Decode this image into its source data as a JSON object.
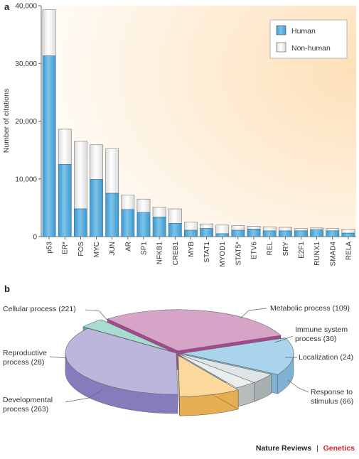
{
  "panel_a_letter": "a",
  "panel_b_letter": "b",
  "footer": {
    "journal": "Nature Reviews",
    "separator": "|",
    "section": "Genetics"
  },
  "colors": {
    "human": "#5aaede",
    "nonhuman": "#ffffff",
    "bg_warm": "#fde3bf"
  },
  "chart_data": [
    {
      "type": "bar",
      "stacked": true,
      "ylabel": "Number of citations",
      "ylim": [
        0,
        40000
      ],
      "yticks": [
        0,
        10000,
        20000,
        30000,
        40000
      ],
      "ytick_labels": [
        "0",
        "10,000",
        "20,000",
        "30,000",
        "40,000"
      ],
      "legend_position": "top-right",
      "categories": [
        "p53",
        "ER*",
        "FOS",
        "MYC",
        "JUN",
        "AR",
        "SP1",
        "NFKB1",
        "CREB1",
        "MYB",
        "STAT1",
        "MYOD1",
        "STAT5*",
        "ETV6",
        "REL",
        "SRY",
        "E2F1",
        "RUNX1",
        "SMAD4",
        "RELA"
      ],
      "series": [
        {
          "name": "Human",
          "values": [
            31300,
            12500,
            4800,
            9900,
            7500,
            4700,
            4200,
            3400,
            2300,
            1100,
            1400,
            500,
            1100,
            1300,
            1000,
            1000,
            1000,
            1200,
            1000,
            600
          ]
        },
        {
          "name": "Non-human",
          "values": [
            8000,
            6100,
            11700,
            6000,
            7700,
            2500,
            2300,
            1700,
            2500,
            1400,
            800,
            1500,
            800,
            500,
            700,
            600,
            400,
            300,
            400,
            700
          ]
        }
      ]
    },
    {
      "type": "pie",
      "labels": [
        "Metabolic process (109)",
        "Immune system process (30)",
        "Localization (24)",
        "Response to stimulus (66)",
        "Developmental process (263)",
        "Reproductive process (28)",
        "Cellular process (221)"
      ],
      "label_lines": [
        [
          "Metabolic process (109)"
        ],
        [
          "Immune system",
          "process (30)"
        ],
        [
          "Localization (24)"
        ],
        [
          "Response to",
          "stimulus (66)"
        ],
        [
          "Developmental",
          "process (263)"
        ],
        [
          "Reproductive",
          "process (28)"
        ],
        [
          "Cellular process (221)"
        ]
      ],
      "values": [
        109,
        30,
        24,
        66,
        263,
        28,
        221
      ],
      "colors": [
        "#a9d4ec",
        "#dfe5e6",
        "#eceeee",
        "#fbd89b",
        "#bdb6dc",
        "#a9dcd1",
        "#d6a4c6"
      ],
      "side_colors": [
        "#7fb3d3",
        "#a7b0b3",
        "#b7bcbd",
        "#e7ad52",
        "#857bbd",
        "#4ab3a2",
        "#a9478e"
      ],
      "exploded": [
        true,
        false,
        false,
        true,
        false,
        true,
        true
      ]
    }
  ]
}
